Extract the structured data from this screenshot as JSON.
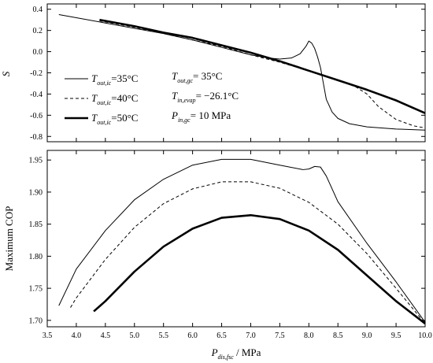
{
  "chart_data": [
    {
      "type": "line",
      "xlim": [
        3.5,
        10.0
      ],
      "ylim": [
        -0.85,
        0.45
      ],
      "ylabel": "S",
      "yticks": [
        "0.4",
        "0.2",
        "0.0",
        "-0.2",
        "-0.4",
        "-0.6",
        "-0.8"
      ],
      "ytick_values": [
        0.4,
        0.2,
        0.0,
        -0.2,
        -0.4,
        -0.6,
        -0.8
      ],
      "series": [
        {
          "name": "T_out,ic=35°C",
          "style": "solid-thin",
          "x": [
            3.7,
            4.0,
            4.5,
            5.0,
            5.5,
            6.0,
            6.5,
            7.0,
            7.3,
            7.5,
            7.7,
            7.85,
            7.95,
            8.0,
            8.05,
            8.1,
            8.15,
            8.2,
            8.25,
            8.3,
            8.4,
            8.5,
            8.7,
            9.0,
            9.5,
            10.0
          ],
          "y": [
            0.35,
            0.32,
            0.27,
            0.22,
            0.17,
            0.11,
            0.04,
            -0.03,
            -0.06,
            -0.07,
            -0.06,
            -0.02,
            0.05,
            0.1,
            0.08,
            0.03,
            -0.05,
            -0.15,
            -0.3,
            -0.45,
            -0.57,
            -0.63,
            -0.68,
            -0.71,
            -0.73,
            -0.74
          ]
        },
        {
          "name": "T_out,ic=40°C",
          "style": "dashed",
          "x": [
            4.4,
            4.5,
            5.0,
            5.5,
            6.0,
            6.5,
            7.0,
            7.5,
            8.0,
            8.5,
            8.8,
            9.0,
            9.2,
            9.5,
            9.8,
            10.0
          ],
          "y": [
            0.29,
            0.28,
            0.23,
            0.17,
            0.11,
            0.05,
            -0.03,
            -0.1,
            -0.18,
            -0.27,
            -0.33,
            -0.4,
            -0.52,
            -0.64,
            -0.7,
            -0.72
          ]
        },
        {
          "name": "T_out,ic=50°C",
          "style": "solid-thick",
          "x": [
            4.4,
            4.5,
            5.0,
            5.5,
            6.0,
            6.5,
            7.0,
            7.5,
            8.0,
            8.5,
            9.0,
            9.5,
            10.0
          ],
          "y": [
            0.3,
            0.29,
            0.24,
            0.18,
            0.13,
            0.06,
            -0.01,
            -0.09,
            -0.18,
            -0.27,
            -0.36,
            -0.46,
            -0.58
          ]
        }
      ],
      "annotations": {
        "T_out_gc": {
          "var": "T",
          "sub": "out,gc",
          "value": "= 35°C"
        },
        "T_in_evap": {
          "var": "T",
          "sub": "in,evap",
          "value": "= −26.1°C"
        },
        "P_in_gc": {
          "var": "P",
          "sub": "in,gc",
          "value": "= 10 MPa"
        }
      },
      "legend": [
        {
          "var": "T",
          "sub": "out,ic",
          "value": "=35°C",
          "style": "solid-thin"
        },
        {
          "var": "T",
          "sub": "out,ic",
          "value": "=40°C",
          "style": "dashed"
        },
        {
          "var": "T",
          "sub": "out,ic",
          "value": "=50°C",
          "style": "solid-thick"
        }
      ]
    },
    {
      "type": "line",
      "xlim": [
        3.5,
        10.0
      ],
      "ylim": [
        1.69,
        1.965
      ],
      "xlabel_var": "P",
      "xlabel_sub": "dis,fsc",
      "xlabel_unit": " / MPa",
      "ylabel": "Maximum COP",
      "xticks": [
        "3.5",
        "4.0",
        "4.5",
        "5.0",
        "5.5",
        "6.0",
        "6.5",
        "7.0",
        "7.5",
        "8.0",
        "8.5",
        "9.0",
        "9.5",
        "10.0"
      ],
      "xtick_values": [
        3.5,
        4.0,
        4.5,
        5.0,
        5.5,
        6.0,
        6.5,
        7.0,
        7.5,
        8.0,
        8.5,
        9.0,
        9.5,
        10.0
      ],
      "yticks": [
        "1.95",
        "1.90",
        "1.85",
        "1.80",
        "1.75",
        "1.70"
      ],
      "ytick_values": [
        1.95,
        1.9,
        1.85,
        1.8,
        1.75,
        1.7
      ],
      "series": [
        {
          "name": "T_out,ic=35°C",
          "style": "solid-thin",
          "x": [
            3.7,
            4.0,
            4.5,
            5.0,
            5.5,
            6.0,
            6.5,
            7.0,
            7.5,
            7.9,
            8.0,
            8.1,
            8.2,
            8.3,
            8.5,
            9.0,
            9.5,
            10.0
          ],
          "y": [
            1.723,
            1.78,
            1.84,
            1.888,
            1.92,
            1.942,
            1.951,
            1.951,
            1.942,
            1.935,
            1.936,
            1.94,
            1.939,
            1.925,
            1.885,
            1.82,
            1.76,
            1.697
          ]
        },
        {
          "name": "T_out,ic=40°C",
          "style": "dashed",
          "x": [
            3.9,
            4.0,
            4.5,
            5.0,
            5.5,
            6.0,
            6.5,
            7.0,
            7.5,
            8.0,
            8.5,
            9.0,
            9.5,
            10.0
          ],
          "y": [
            1.72,
            1.735,
            1.795,
            1.845,
            1.882,
            1.905,
            1.916,
            1.916,
            1.906,
            1.884,
            1.85,
            1.804,
            1.75,
            1.695
          ]
        },
        {
          "name": "T_out,ic=50°C",
          "style": "solid-thick",
          "x": [
            4.3,
            4.5,
            5.0,
            5.5,
            6.0,
            6.5,
            7.0,
            7.5,
            8.0,
            8.5,
            9.0,
            9.5,
            10.0
          ],
          "y": [
            1.714,
            1.73,
            1.776,
            1.815,
            1.843,
            1.86,
            1.864,
            1.858,
            1.84,
            1.81,
            1.77,
            1.73,
            1.695
          ]
        }
      ]
    }
  ]
}
